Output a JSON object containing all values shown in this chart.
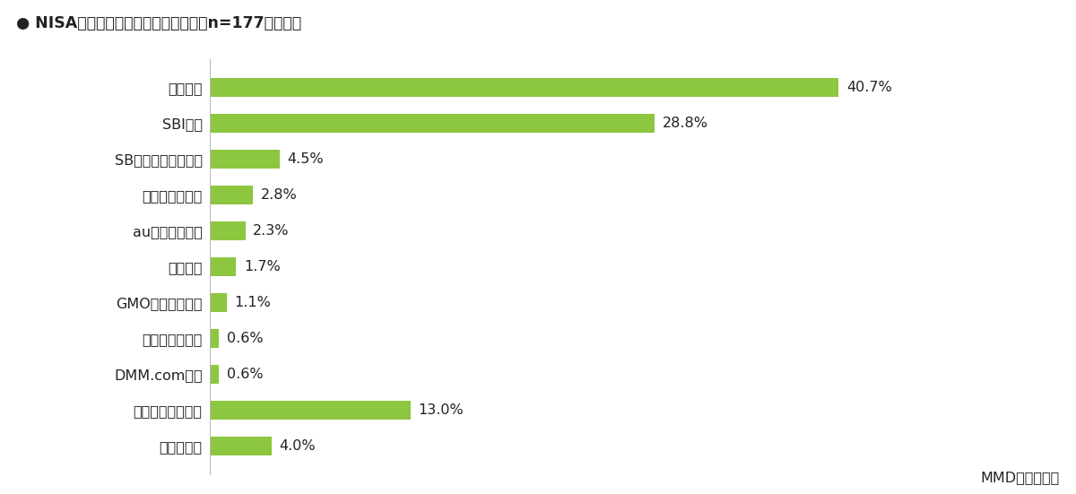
{
  "title": "● NISA口座を開設したいネット証券（n=177、単数）",
  "categories": [
    "楽天証券",
    "SBI証券",
    "SBネオトレード証券",
    "マネックス証券",
    "auカブコム証券",
    "松井証券",
    "GMOクリック証券",
    "岡三オンライン",
    "DMM.com証券",
    "特に決めていない",
    "分からない"
  ],
  "values": [
    40.7,
    28.8,
    4.5,
    2.8,
    2.3,
    1.7,
    1.1,
    0.6,
    0.6,
    13.0,
    4.0
  ],
  "bar_color": "#8dc63f",
  "label_color": "#222222",
  "background_color": "#ffffff",
  "title_fontsize": 12.5,
  "label_fontsize": 11.5,
  "value_fontsize": 11.5,
  "footer_fontsize": 11.5,
  "xlim": [
    0,
    47
  ],
  "footer": "MMD研究所調べ"
}
